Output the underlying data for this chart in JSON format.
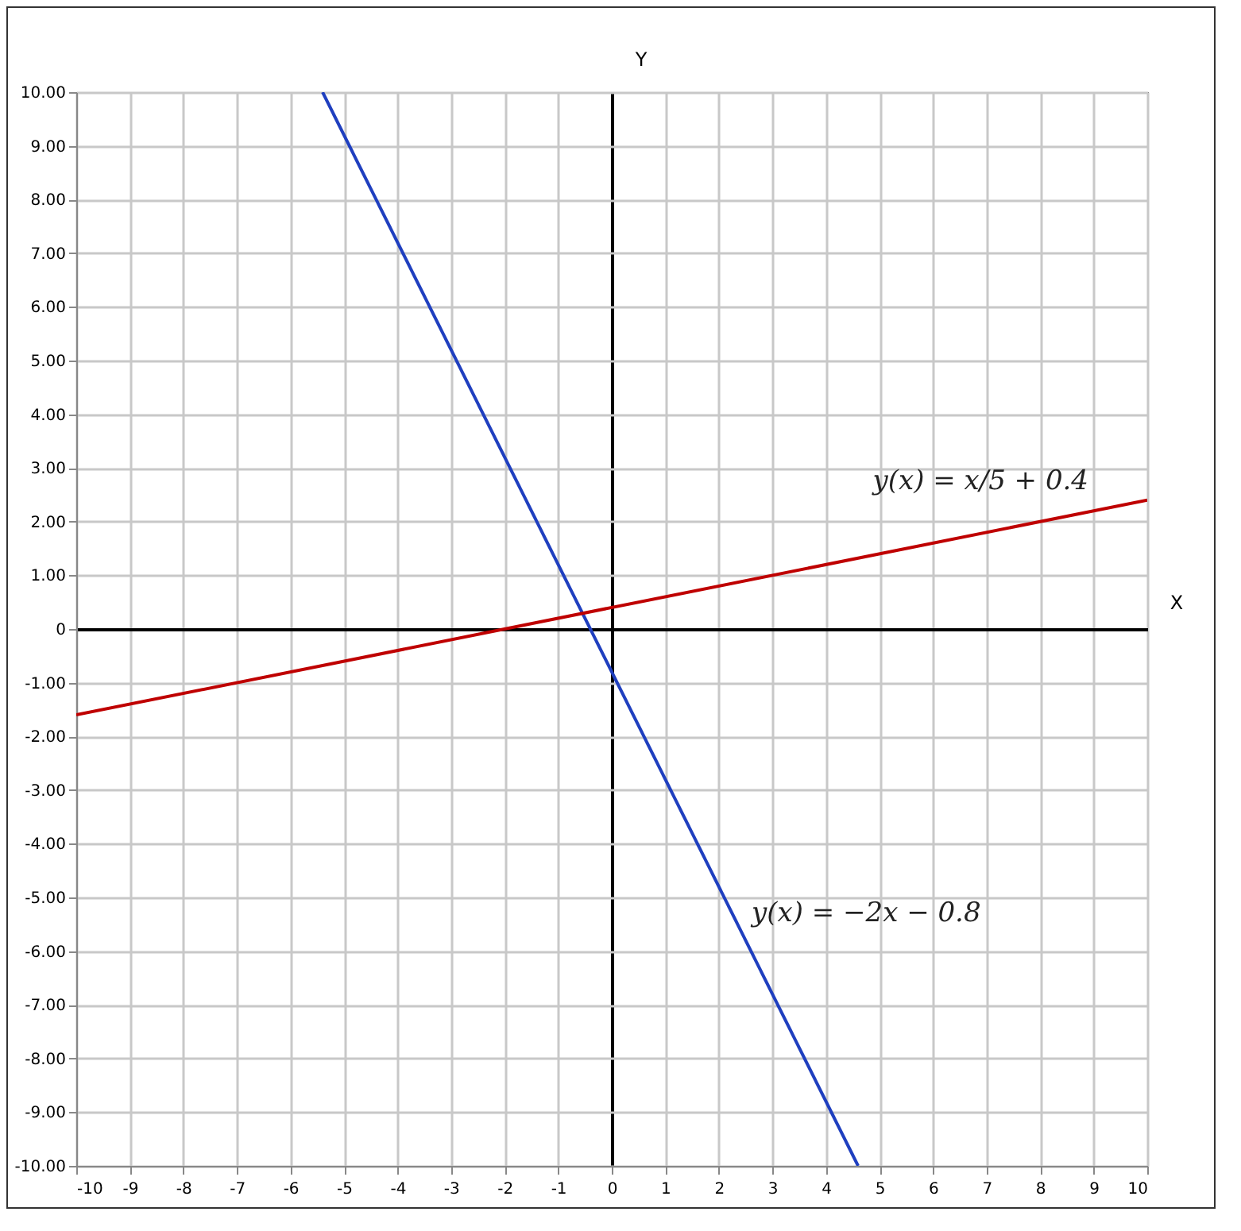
{
  "chart_data": {
    "type": "line",
    "xlabel": "X",
    "ylabel": "Y",
    "series": [
      {
        "name": "y(x) = −2x − 0.8",
        "color": "#1f3fbf",
        "x": [
          -5.4,
          4.6
        ],
        "values": [
          10,
          -10
        ]
      },
      {
        "name": "y(x) = x/5 + 0.4",
        "color": "#bf0000",
        "x": [
          -10,
          10
        ],
        "values": [
          -1.6,
          2.4
        ]
      }
    ],
    "xlim": [
      -10,
      10
    ],
    "xticks": [
      -10,
      -9,
      -8,
      -7,
      -6,
      -5,
      -4,
      -3,
      -2,
      -1,
      0,
      1,
      2,
      3,
      4,
      5,
      6,
      7,
      8,
      9,
      10
    ],
    "ylim": [
      -10,
      10
    ],
    "yticks": [
      {
        "value": -10,
        "label": "-10.00"
      },
      {
        "value": -9,
        "label": "-9.00"
      },
      {
        "value": -8,
        "label": "-8.00"
      },
      {
        "value": -7,
        "label": "-7.00"
      },
      {
        "value": -6,
        "label": "-6.00"
      },
      {
        "value": -5,
        "label": "-5.00"
      },
      {
        "value": -4,
        "label": "-4.00"
      },
      {
        "value": -3,
        "label": "-3.00"
      },
      {
        "value": -2,
        "label": "-2.00"
      },
      {
        "value": -1,
        "label": "-1.00"
      },
      0,
      {
        "value": 1,
        "label": "1.00"
      },
      {
        "value": 2,
        "label": "2.00"
      },
      {
        "value": 3,
        "label": "3.00"
      },
      {
        "value": 4,
        "label": "4.00"
      },
      {
        "value": 5,
        "label": "5.00"
      },
      {
        "value": 6,
        "label": "6.00"
      },
      {
        "value": 7,
        "label": "7.00"
      },
      {
        "value": 8,
        "label": "8.00"
      },
      {
        "value": 9,
        "label": "9.00"
      },
      {
        "value": 10,
        "label": "10.00"
      }
    ],
    "grid": true,
    "marker": "none",
    "line_style": "solid"
  }
}
